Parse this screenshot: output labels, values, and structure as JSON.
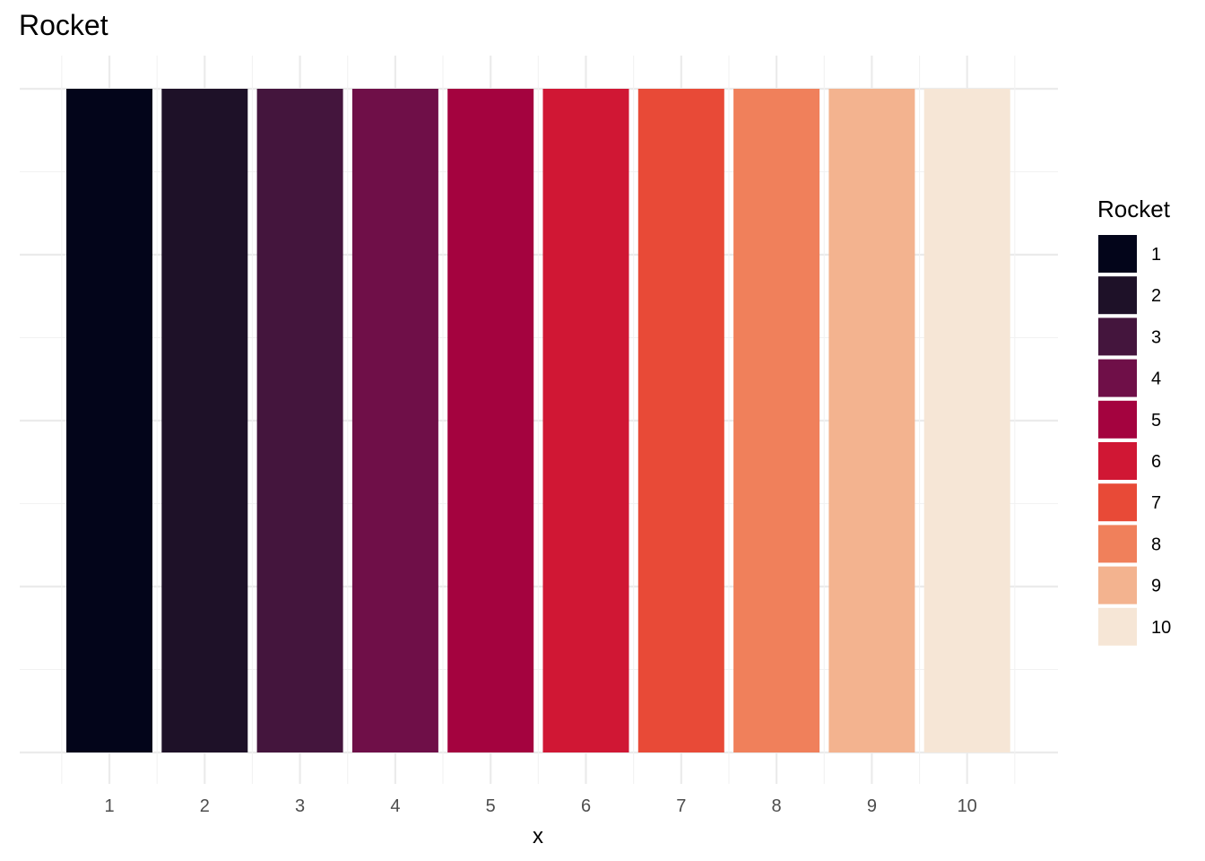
{
  "chart_data": {
    "type": "bar",
    "title": "Rocket",
    "xlabel": "x",
    "ylabel": "",
    "categories": [
      "1",
      "2",
      "3",
      "4",
      "5",
      "6",
      "7",
      "8",
      "9",
      "10"
    ],
    "values": [
      1,
      1,
      1,
      1,
      1,
      1,
      1,
      1,
      1,
      1
    ],
    "colors": [
      "#03051A",
      "#1E1128",
      "#44153D",
      "#6F0F48",
      "#A4033F",
      "#D01734",
      "#E84A37",
      "#F0805B",
      "#F3B38F",
      "#F6E6D6"
    ],
    "ylim": [
      0,
      1
    ],
    "grid": true,
    "y_tick_labels_shown": false,
    "legend": {
      "title": "Rocket",
      "position": "right",
      "entries": [
        "1",
        "2",
        "3",
        "4",
        "5",
        "6",
        "7",
        "8",
        "9",
        "10"
      ]
    }
  }
}
